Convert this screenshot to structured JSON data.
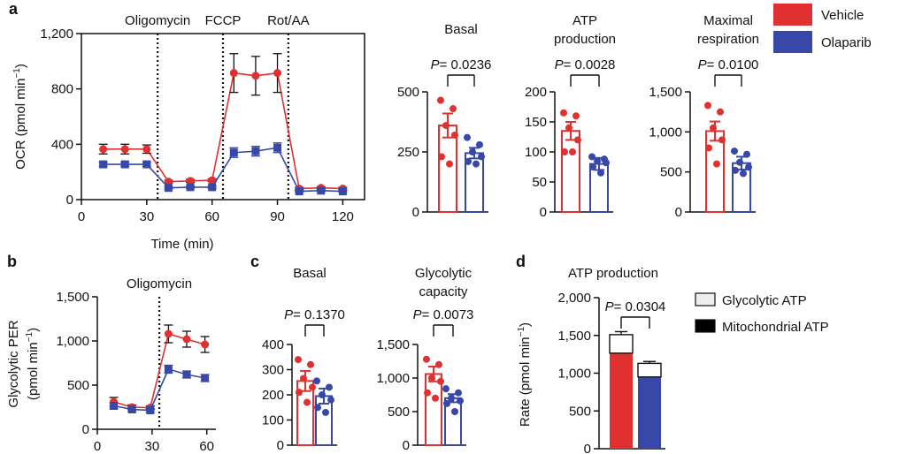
{
  "figure": {
    "colors": {
      "vehicle": "#e03030",
      "olaparib": "#3848a8",
      "axis": "#111111"
    },
    "legend_top": [
      {
        "label": "Vehicle",
        "color": "#e03030"
      },
      {
        "label": "Olaparib",
        "color": "#3848a8"
      }
    ],
    "legend_d": [
      {
        "label": "Glycolytic ATP",
        "fill": "#eeeeee"
      },
      {
        "label": "Mitochondrial ATP",
        "fill": "#000000"
      }
    ]
  },
  "chart_data": [
    {
      "id": "ocr-time",
      "panel": "a",
      "type": "line",
      "xlabel": "Time (min)",
      "ylabel": "OCR (pmol min",
      "ylabel_sup": "−1",
      "ylabel_end": ")",
      "xlim": [
        0,
        130
      ],
      "ylim": [
        0,
        1200
      ],
      "xticks": [
        0,
        30,
        60,
        90,
        120
      ],
      "xtick_labels": [
        "0",
        "30",
        "60",
        "90",
        "120"
      ],
      "yticks": [
        0,
        400,
        800,
        1200
      ],
      "ytick_labels": [
        "0",
        "400",
        "800",
        "1,200"
      ],
      "injections": [
        {
          "label": "Oligomycin",
          "x": 35
        },
        {
          "label": "FCCP",
          "x": 65
        },
        {
          "label": "Rot/AA",
          "x": 95
        }
      ],
      "x": [
        10,
        20,
        30,
        40,
        50,
        60,
        70,
        80,
        90,
        100,
        110,
        120
      ],
      "series": [
        {
          "name": "Vehicle",
          "marker": "circle",
          "values": [
            365,
            365,
            365,
            130,
            135,
            140,
            915,
            895,
            915,
            80,
            85,
            80
          ],
          "errors": [
            35,
            35,
            30,
            10,
            10,
            10,
            140,
            140,
            140,
            8,
            8,
            8
          ]
        },
        {
          "name": "Olaparib",
          "marker": "square",
          "values": [
            255,
            255,
            255,
            85,
            90,
            90,
            340,
            350,
            375,
            60,
            65,
            60
          ],
          "errors": [
            15,
            15,
            15,
            8,
            8,
            8,
            35,
            35,
            35,
            5,
            5,
            5
          ]
        }
      ]
    },
    {
      "id": "basal-ocr",
      "panel": "a",
      "type": "bar",
      "title": "Basal",
      "pvalue": "= 0.0236",
      "ylim": [
        0,
        500
      ],
      "yticks": [
        0,
        250,
        500
      ],
      "ytick_labels": [
        "0",
        "250",
        "500"
      ],
      "categories": [
        "Vehicle",
        "Olaparib"
      ],
      "values": [
        360,
        245
      ],
      "errors": [
        50,
        22
      ],
      "points": [
        [
          465,
          430,
          360,
          320,
          230,
          200
        ],
        [
          310,
          280,
          250,
          230,
          210,
          200
        ]
      ]
    },
    {
      "id": "atp-ocr",
      "panel": "a",
      "type": "bar",
      "title": "ATP",
      "title2": "production",
      "pvalue": "= 0.0028",
      "ylim": [
        0,
        200
      ],
      "yticks": [
        0,
        50,
        100,
        150,
        200
      ],
      "ytick_labels": [
        "0",
        "50",
        "100",
        "150",
        "200"
      ],
      "categories": [
        "Vehicle",
        "Olaparib"
      ],
      "values": [
        135,
        80
      ],
      "errors": [
        15,
        10
      ],
      "points": [
        [
          165,
          160,
          140,
          120,
          100,
          100
        ],
        [
          92,
          88,
          85,
          82,
          75,
          65
        ]
      ]
    },
    {
      "id": "maximal-ocr",
      "panel": "a",
      "type": "bar",
      "title": "Maximal",
      "title2": "respiration",
      "pvalue": "= 0.0100",
      "ylim": [
        0,
        1500
      ],
      "yticks": [
        0,
        500,
        1000,
        1500
      ],
      "ytick_labels": [
        "0",
        "500",
        "1,000",
        "1,500"
      ],
      "categories": [
        "Vehicle",
        "Olaparib"
      ],
      "values": [
        1010,
        610
      ],
      "errors": [
        120,
        80
      ],
      "points": [
        [
          1330,
          1250,
          1050,
          900,
          800,
          600
        ],
        [
          760,
          720,
          620,
          560,
          520,
          480
        ]
      ]
    },
    {
      "id": "glyco-time",
      "panel": "b",
      "type": "line",
      "title": "Oligomycin",
      "xlabel": "",
      "ylabel": "Glycolytic PER",
      "ylabel2": "(pmol min",
      "ylabel2_sup": "−1",
      "ylabel2_end": ")",
      "xlim": [
        0,
        65
      ],
      "ylim": [
        0,
        1500
      ],
      "xticks": [
        0,
        30,
        60
      ],
      "xtick_labels": [
        "0",
        "30",
        "60"
      ],
      "yticks": [
        0,
        500,
        1000,
        1500
      ],
      "ytick_labels": [
        "0",
        "500",
        "1,000",
        "1,500"
      ],
      "injections": [
        {
          "label": "",
          "x": 34
        }
      ],
      "x": [
        9,
        19,
        29,
        39,
        49,
        59
      ],
      "series": [
        {
          "name": "Vehicle",
          "marker": "circle",
          "values": [
            310,
            250,
            245,
            1080,
            1020,
            960
          ],
          "errors": [
            50,
            25,
            20,
            100,
            90,
            90
          ]
        },
        {
          "name": "Olaparib",
          "marker": "square",
          "values": [
            265,
            225,
            215,
            680,
            620,
            580
          ],
          "errors": [
            35,
            20,
            20,
            45,
            40,
            40
          ]
        }
      ]
    },
    {
      "id": "glyco-basal",
      "panel": "c",
      "type": "bar",
      "title": "Basal",
      "pvalue": "= 0.1370",
      "ylim": [
        0,
        400
      ],
      "yticks": [
        0,
        100,
        200,
        300,
        400
      ],
      "ytick_labels": [
        "0",
        "100",
        "200",
        "300",
        "400"
      ],
      "categories": [
        "Vehicle",
        "Olaparib"
      ],
      "values": [
        255,
        195
      ],
      "errors": [
        40,
        30
      ],
      "points": [
        [
          340,
          320,
          265,
          230,
          210,
          170
        ],
        [
          255,
          230,
          200,
          180,
          150,
          130
        ]
      ]
    },
    {
      "id": "glyco-capacity",
      "panel": "c",
      "type": "bar",
      "title": "Glycolytic",
      "title2": "capacity",
      "pvalue": "= 0.0073",
      "ylim": [
        0,
        1500
      ],
      "yticks": [
        0,
        500,
        1000,
        1500
      ],
      "ytick_labels": [
        "0",
        "500",
        "1,000",
        "1,500"
      ],
      "categories": [
        "Vehicle",
        "Olaparib"
      ],
      "values": [
        1060,
        700
      ],
      "errors": [
        110,
        60
      ],
      "points": [
        [
          1280,
          1200,
          1000,
          950,
          780,
          700
        ],
        [
          840,
          780,
          700,
          660,
          620,
          500
        ]
      ]
    },
    {
      "id": "atp-rate",
      "panel": "d",
      "type": "bar",
      "title": "ATP production",
      "pvalue": "= 0.0304",
      "ylabel": "Rate (pmol min",
      "ylabel_sup": "−1",
      "ylabel_end": ")",
      "ylim": [
        0,
        2000
      ],
      "yticks": [
        0,
        500,
        1000,
        1500,
        2000
      ],
      "ytick_labels": [
        "0",
        "500",
        "1,000",
        "1,500",
        "2,000"
      ],
      "categories": [
        "Vehicle",
        "Olaparib"
      ],
      "series": [
        {
          "name": "Mitochondrial ATP",
          "values": [
            1265,
            950
          ]
        },
        {
          "name": "Glycolytic ATP",
          "values": [
            245,
            180
          ]
        }
      ],
      "errors": [
        40,
        25
      ]
    }
  ]
}
